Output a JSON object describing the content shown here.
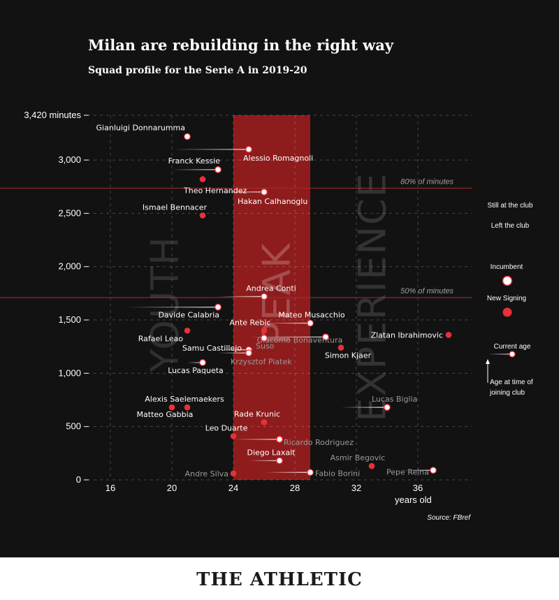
{
  "title": "Milan are rebuilding in the right way",
  "subtitle": "Squad profile for the Serie A in 2019-20",
  "source": "Source: FBref",
  "brand": "THE ATHLETIC",
  "zones": [
    "YOUTH",
    "PEAK",
    "EXPERIENCE"
  ],
  "reference_lines": [
    {
      "label": "80% of minutes",
      "value": 2736
    },
    {
      "label": "50% of minutes",
      "value": 1710
    }
  ],
  "legend": {
    "still_at_club": "Still at the club",
    "left_club": "Left the club",
    "incumbent": "Incumbent",
    "new_signing": "New Signing",
    "current_age": "Current age",
    "age_at_joining": "Age at time of joining club"
  },
  "colors": {
    "background": "#121212",
    "peak_band": "#8e1c1c",
    "new_signing": "#e8303a",
    "incumbent": "#ffffff",
    "left_club_text": "#9a9a9a",
    "reference_line": "#8e1c1c"
  },
  "chart_data": {
    "type": "scatter",
    "title": "Milan are rebuilding in the right way",
    "subtitle": "Squad profile for the Serie A in 2019-20",
    "xlabel": "years old",
    "ylabel": "",
    "xlim": [
      14.5,
      39.5
    ],
    "ylim": [
      0,
      3420
    ],
    "x_ticks": [
      16,
      20,
      24,
      28,
      32,
      36
    ],
    "y_ticks": [
      0,
      500,
      1000,
      1500,
      2000,
      2500,
      3000,
      3420
    ],
    "y_tick_labels": [
      "0",
      "500",
      "1,000",
      "1,500",
      "2,000",
      "2,500",
      "3,000",
      "3,420 minutes"
    ],
    "peak_range": [
      24,
      29
    ],
    "grid": true,
    "points": [
      {
        "name": "Gianluigi Donnarumma",
        "age": 21,
        "joined_age": 21,
        "minutes": 3220,
        "type": "incumbent",
        "status": "still"
      },
      {
        "name": "Alessio Romagnoli",
        "age": 25,
        "joined_age": 20,
        "minutes": 3100,
        "type": "incumbent",
        "status": "still"
      },
      {
        "name": "Franck Kessie",
        "age": 23,
        "joined_age": 20,
        "minutes": 2910,
        "type": "incumbent",
        "status": "still"
      },
      {
        "name": "Theo Hernandez",
        "age": 22,
        "joined_age": 22,
        "minutes": 2820,
        "type": "new",
        "status": "still"
      },
      {
        "name": "Hakan Calhanoglu",
        "age": 26,
        "joined_age": 23,
        "minutes": 2700,
        "type": "incumbent",
        "status": "still"
      },
      {
        "name": "Ismael Bennacer",
        "age": 22,
        "joined_age": 22,
        "minutes": 2480,
        "type": "new",
        "status": "still"
      },
      {
        "name": "Andrea Conti",
        "age": 26,
        "joined_age": 23,
        "minutes": 1720,
        "type": "incumbent",
        "status": "still"
      },
      {
        "name": "Davide Calabria",
        "age": 23,
        "joined_age": 17,
        "minutes": 1620,
        "type": "incumbent",
        "status": "still"
      },
      {
        "name": "Mateo Musacchio",
        "age": 29,
        "joined_age": 26,
        "minutes": 1470,
        "type": "incumbent",
        "status": "still"
      },
      {
        "name": "Ante Rebic",
        "age": 26,
        "joined_age": 26,
        "minutes": 1400,
        "type": "new",
        "status": "still"
      },
      {
        "name": "Rafael Leao",
        "age": 21,
        "joined_age": 21,
        "minutes": 1400,
        "type": "new",
        "status": "still"
      },
      {
        "name": "Giacomo Bonaventura",
        "age": 30,
        "joined_age": 25,
        "minutes": 1340,
        "type": "incumbent",
        "status": "left"
      },
      {
        "name": "Zlatan Ibrahimovic",
        "age": 38,
        "joined_age": 38,
        "minutes": 1360,
        "type": "new",
        "status": "still"
      },
      {
        "name": "Suso",
        "age": 26,
        "joined_age": 26,
        "minutes": 1330,
        "type": "incumbent",
        "status": "left"
      },
      {
        "name": "Simon Kjaer",
        "age": 31,
        "joined_age": 31,
        "minutes": 1240,
        "type": "new",
        "status": "still"
      },
      {
        "name": "Samu Castillejo",
        "age": 25,
        "joined_age": 23,
        "minutes": 1220,
        "type": "incumbent",
        "status": "still"
      },
      {
        "name": "Krzysztof Piatek",
        "age": 25,
        "joined_age": 23,
        "minutes": 1190,
        "type": "incumbent",
        "status": "left"
      },
      {
        "name": "Lucas Paqueta",
        "age": 22,
        "joined_age": 21,
        "minutes": 1100,
        "type": "incumbent",
        "status": "still"
      },
      {
        "name": "Alexis Saelemaekers",
        "age": 21,
        "joined_age": 21,
        "minutes": 680,
        "type": "new",
        "status": "still"
      },
      {
        "name": "Matteo Gabbia",
        "age": 20,
        "joined_age": 20,
        "minutes": 680,
        "type": "new",
        "status": "still"
      },
      {
        "name": "Lucas Biglia",
        "age": 34,
        "joined_age": 31,
        "minutes": 680,
        "type": "incumbent",
        "status": "left"
      },
      {
        "name": "Rade Krunic",
        "age": 26,
        "joined_age": 26,
        "minutes": 540,
        "type": "new",
        "status": "still"
      },
      {
        "name": "Leo Duarte",
        "age": 24,
        "joined_age": 24,
        "minutes": 410,
        "type": "new",
        "status": "still"
      },
      {
        "name": "Ricardo Rodriguez",
        "age": 27,
        "joined_age": 24,
        "minutes": 380,
        "type": "incumbent",
        "status": "left"
      },
      {
        "name": "Diego Laxalt",
        "age": 27,
        "joined_age": 25,
        "minutes": 180,
        "type": "incumbent",
        "status": "still"
      },
      {
        "name": "Asmir Begovic",
        "age": 33,
        "joined_age": 33,
        "minutes": 130,
        "type": "new",
        "status": "left"
      },
      {
        "name": "Pepe Reina",
        "age": 37,
        "joined_age": 35,
        "minutes": 90,
        "type": "incumbent",
        "status": "left"
      },
      {
        "name": "Fabio Borini",
        "age": 29,
        "joined_age": 26,
        "minutes": 70,
        "type": "incumbent",
        "status": "left"
      },
      {
        "name": "Andre Silva",
        "age": 24,
        "joined_age": 24,
        "minutes": 60,
        "type": "new",
        "status": "left"
      }
    ]
  }
}
